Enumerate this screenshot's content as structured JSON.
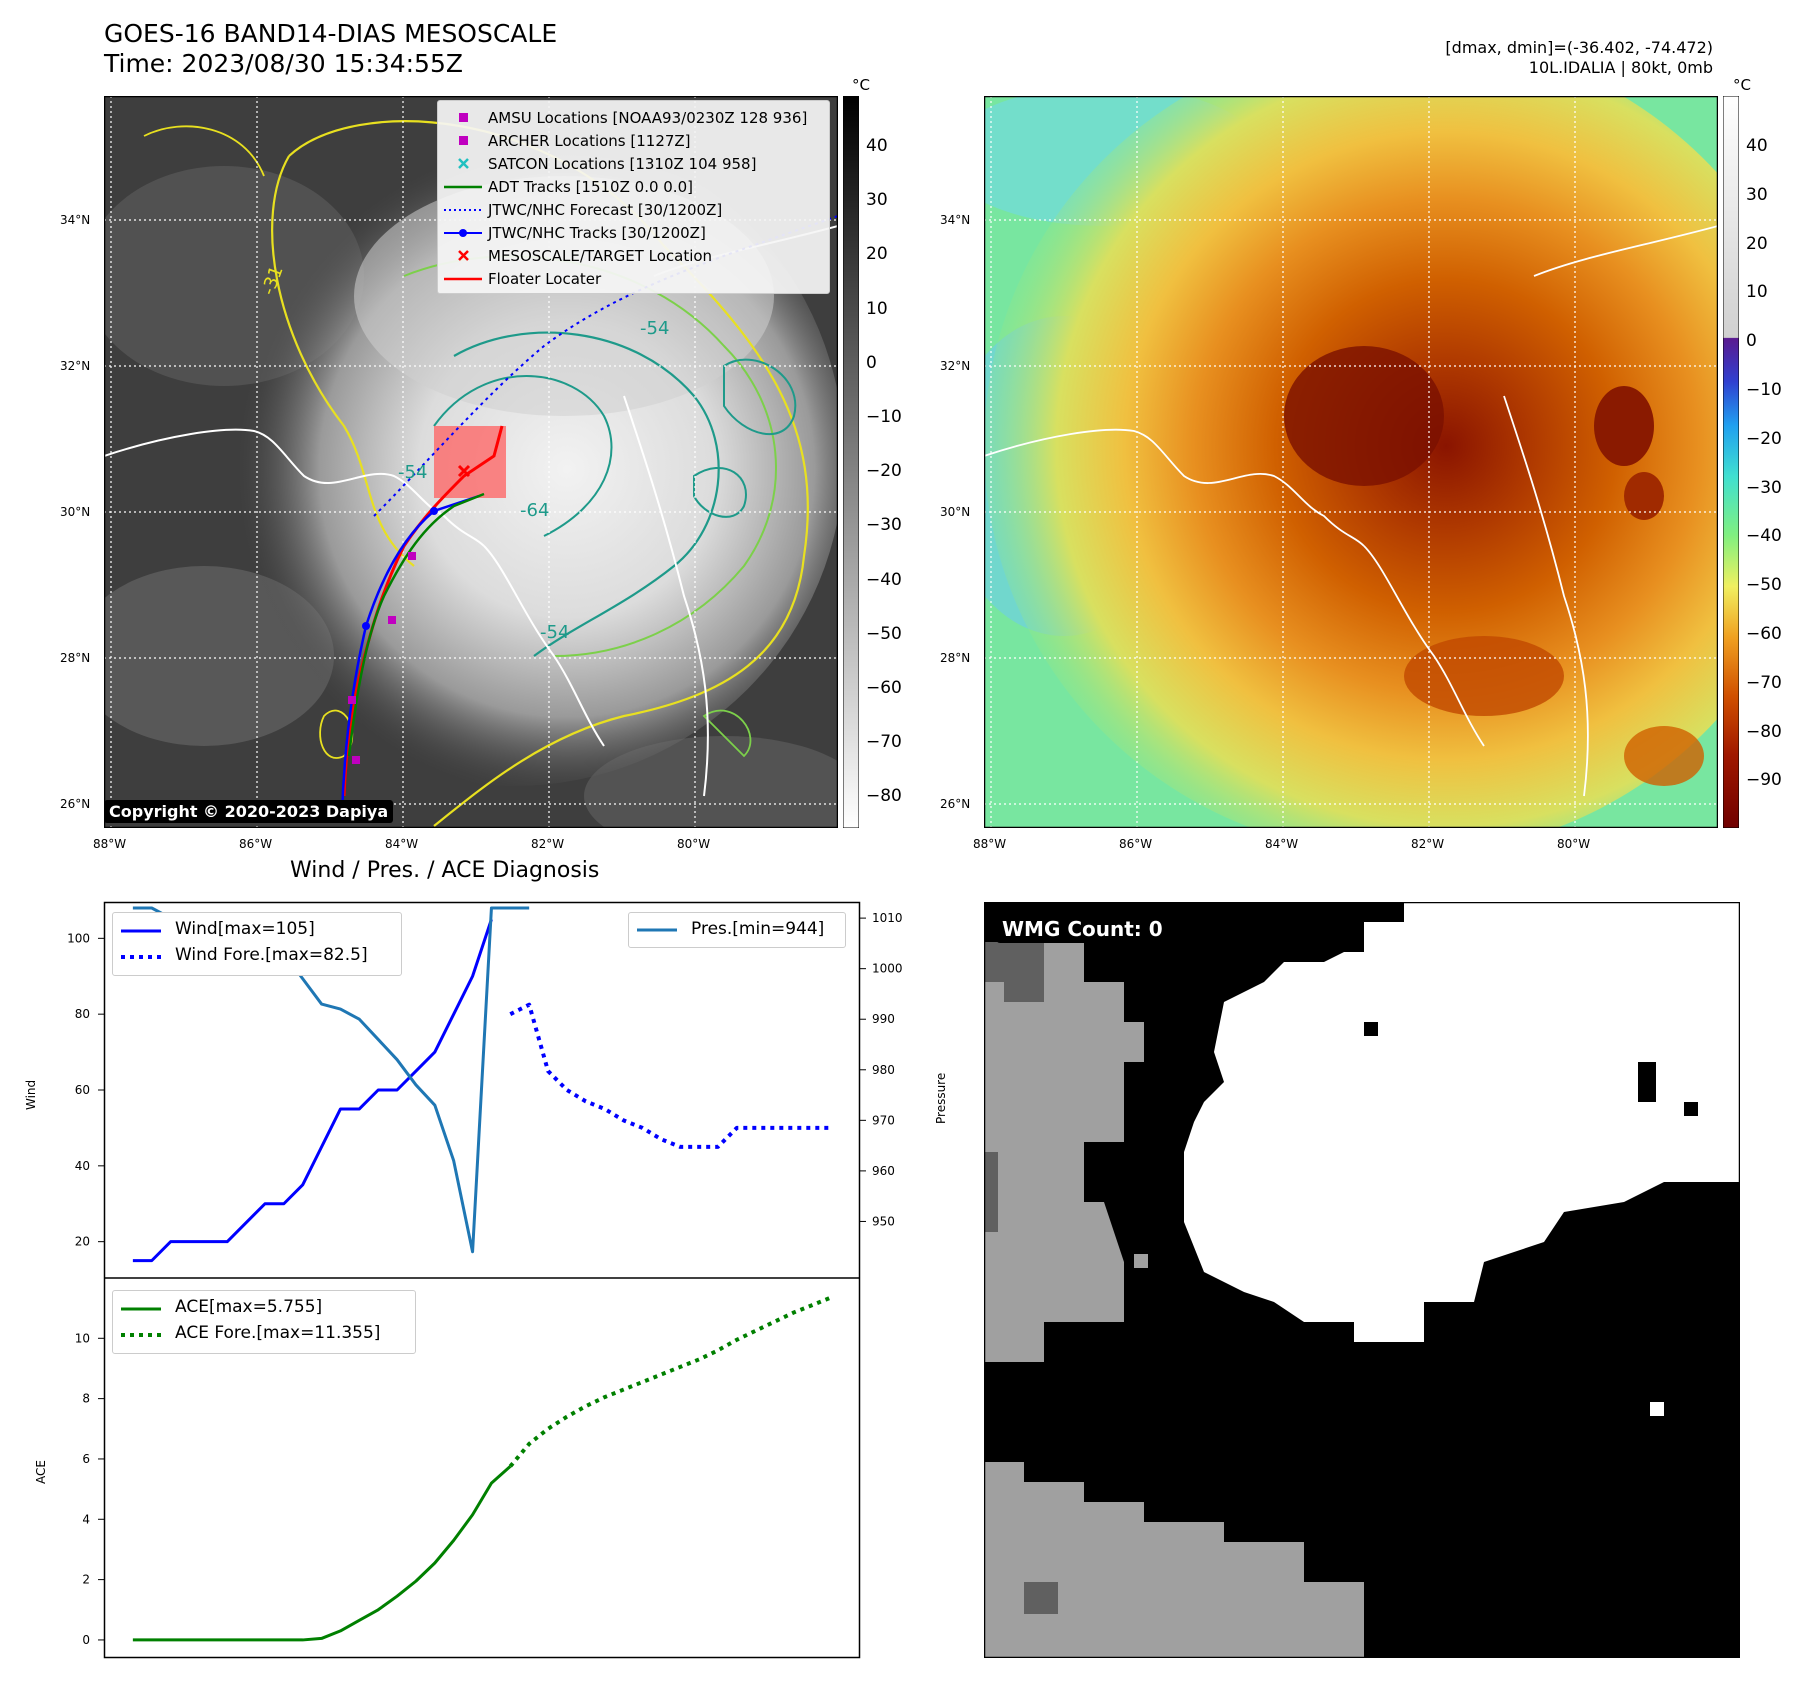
{
  "header": {
    "title": "GOES-16 BAND14-DIAS MESOSCALE",
    "time": "Time: 2023/08/30 15:34:55Z",
    "stats": "[dmax, dmin]=(-36.402, -74.472)",
    "storm": "10L.IDALIA | 80kt, 0mb"
  },
  "maps": {
    "lat_ticks": [
      "34°N",
      "32°N",
      "30°N",
      "28°N",
      "26°N"
    ],
    "lon_ticks": [
      "88°W",
      "86°W",
      "84°W",
      "82°W",
      "80°W"
    ],
    "copyright": "Copyright © 2020-2023 Dapiya",
    "colorbar_unit": "°C",
    "left_colorbar_ticks": [
      "40",
      "30",
      "20",
      "10",
      "0",
      "−10",
      "−20",
      "−30",
      "−40",
      "−50",
      "−60",
      "−70",
      "−80"
    ],
    "right_colorbar_ticks": [
      "40",
      "30",
      "20",
      "10",
      "0",
      "−10",
      "−20",
      "−30",
      "−40",
      "−50",
      "−60",
      "−70",
      "−80",
      "−90"
    ],
    "contour_labels": [
      "-54",
      "-64",
      "-54",
      "-54",
      "-31"
    ],
    "legend": [
      {
        "label": "AMSU Locations [NOAA93/0230Z 128 936]",
        "color": "#c000c0",
        "icon": "square-marker"
      },
      {
        "label": "ARCHER Locations [1127Z]",
        "color": "#c000c0",
        "icon": "square-marker"
      },
      {
        "label": "SATCON Locations [1310Z 104 958]",
        "color": "#20c0c0",
        "icon": "x-marker"
      },
      {
        "label": "ADT Tracks [1510Z 0.0 0.0]",
        "color": "#008000",
        "icon": "solid-line"
      },
      {
        "label": "JTWC/NHC Forecast [30/1200Z]",
        "color": "#0000ff",
        "icon": "dotted-line"
      },
      {
        "label": "JTWC/NHC Tracks [30/1200Z]",
        "color": "#0000ff",
        "icon": "line-dot"
      },
      {
        "label": "MESOSCALE/TARGET Location",
        "color": "#ff0000",
        "icon": "x-marker"
      },
      {
        "label": "Floater Locater",
        "color": "#ff0000",
        "icon": "solid-line"
      }
    ]
  },
  "diagnosis": {
    "title": "Wind / Pres. / ACE Diagnosis",
    "wind_label": "Wind",
    "pressure_label": "Pressure",
    "ace_label": "ACE",
    "wmg_count": "WMG Count: 0",
    "legend": {
      "wind": "Wind[max=105]",
      "wind_fore": "Wind Fore.[max=82.5]",
      "pres": "Pres.[min=944]",
      "ace": "ACE[max=5.755]",
      "ace_fore": "ACE Fore.[max=11.355]"
    }
  },
  "chart_data": [
    {
      "type": "line",
      "name": "wind",
      "ylabel": "Wind",
      "ylim": [
        12,
        108
      ],
      "yticks": [
        20,
        40,
        60,
        80,
        100
      ],
      "series": [
        {
          "name": "Wind[max=105]",
          "color": "#0000ff",
          "style": "solid",
          "x": [
            0,
            1,
            2,
            3,
            4,
            5,
            6,
            7,
            8,
            9,
            10,
            11,
            12,
            13,
            14,
            15,
            16,
            17,
            18,
            19
          ],
          "values": [
            15,
            15,
            20,
            20,
            20,
            20,
            25,
            30,
            30,
            35,
            45,
            55,
            55,
            60,
            60,
            65,
            70,
            80,
            90,
            105
          ]
        },
        {
          "name": "Wind Fore.[max=82.5]",
          "color": "#0000ff",
          "style": "dotted",
          "x": [
            20,
            21,
            22,
            23,
            24,
            25,
            26,
            27,
            28,
            29,
            30,
            31,
            32,
            33,
            34,
            35,
            36,
            37
          ],
          "values": [
            80,
            82.5,
            65,
            60,
            57,
            55,
            52,
            50,
            47,
            45,
            45,
            45,
            50,
            50,
            50,
            50,
            50,
            50
          ]
        }
      ]
    },
    {
      "type": "line",
      "name": "pressure",
      "ylabel": "Pressure",
      "ylim": [
        940,
        1012
      ],
      "yticks": [
        950,
        960,
        970,
        980,
        990,
        1000,
        1010
      ],
      "series": [
        {
          "name": "Pres.[min=944]",
          "color": "#1f77b4",
          "style": "solid",
          "x": [
            0,
            1,
            2,
            3,
            4,
            5,
            6,
            7,
            8,
            9,
            10,
            11,
            12,
            13,
            14,
            15,
            16,
            17,
            18,
            19,
            20,
            21
          ],
          "values": [
            1012,
            1012,
            1010,
            1010,
            1008,
            1008,
            1007,
            1003,
            1003,
            998,
            993,
            992,
            990,
            986,
            982,
            977,
            973,
            962,
            944,
            1012,
            1012,
            1012
          ]
        }
      ]
    },
    {
      "type": "line",
      "name": "ace",
      "ylabel": "ACE",
      "ylim": [
        -0.4,
        11.8
      ],
      "yticks": [
        0,
        2,
        4,
        6,
        8,
        10
      ],
      "series": [
        {
          "name": "ACE[max=5.755]",
          "color": "#008000",
          "style": "solid",
          "x": [
            0,
            1,
            2,
            3,
            4,
            5,
            6,
            7,
            8,
            9,
            10,
            11,
            12,
            13,
            14,
            15,
            16,
            17,
            18,
            19,
            20
          ],
          "values": [
            0,
            0,
            0,
            0,
            0,
            0,
            0,
            0,
            0,
            0,
            0.05,
            0.3,
            0.65,
            1.0,
            1.45,
            1.95,
            2.55,
            3.3,
            4.15,
            5.2,
            5.755
          ]
        },
        {
          "name": "ACE Fore.[max=11.355]",
          "color": "#008000",
          "style": "dotted",
          "x": [
            20,
            21,
            22,
            23,
            24,
            25,
            26,
            27,
            28,
            29,
            30,
            31,
            32,
            33,
            34,
            35,
            36,
            37
          ],
          "values": [
            5.755,
            6.5,
            7.0,
            7.4,
            7.75,
            8.05,
            8.3,
            8.55,
            8.8,
            9.05,
            9.3,
            9.6,
            9.95,
            10.25,
            10.55,
            10.85,
            11.1,
            11.355
          ]
        }
      ]
    }
  ]
}
